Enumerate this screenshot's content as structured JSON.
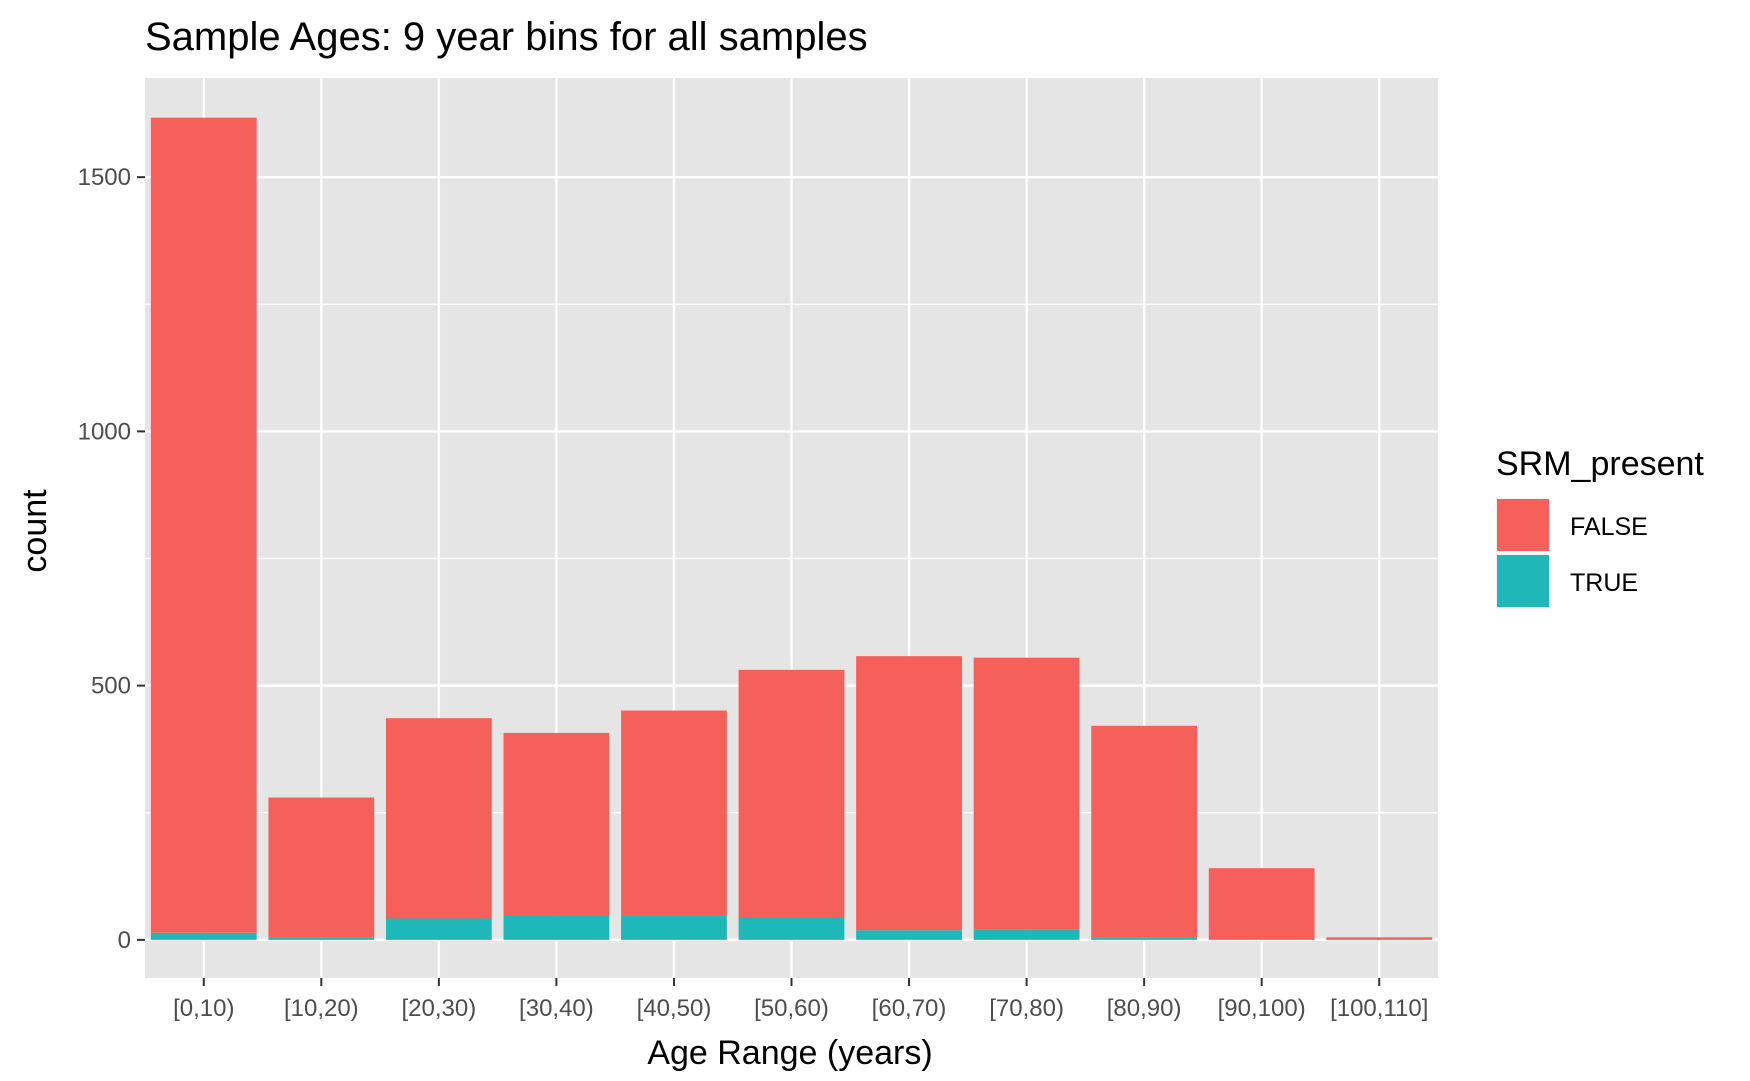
{
  "chart_data": {
    "type": "bar",
    "stacked": true,
    "title": "Sample Ages: 9 year bins for all samples",
    "xlabel": "Age Range (years)",
    "ylabel": "count",
    "categories": [
      "[0,10)",
      "[10,20)",
      "[20,30)",
      "[30,40)",
      "[40,50)",
      "[50,60)",
      "[60,70)",
      "[70,80)",
      "[80,90)",
      "[90,100)",
      "[100,110]"
    ],
    "series": [
      {
        "name": "TRUE",
        "color": "#1fb8b8",
        "values": [
          14,
          4,
          42,
          47,
          48,
          43,
          19,
          20,
          4,
          0,
          0
        ]
      },
      {
        "name": "FALSE",
        "color": "#f5605a",
        "values": [
          1603,
          276,
          394,
          360,
          403,
          488,
          539,
          535,
          417,
          141,
          5
        ]
      }
    ],
    "totals": [
      1617,
      280,
      436,
      407,
      451,
      531,
      558,
      555,
      421,
      141,
      5
    ],
    "ylim": [
      -75,
      1695
    ],
    "yticks": [
      0,
      500,
      1000,
      1500
    ],
    "grid": true,
    "legend": {
      "title": "SRM_present",
      "position": "right",
      "entries": [
        {
          "label": "FALSE",
          "color": "#f5605a"
        },
        {
          "label": "TRUE",
          "color": "#1fb8b8"
        }
      ]
    },
    "panel_background": "#e5e5e5",
    "gridline_color": "#ffffff"
  }
}
